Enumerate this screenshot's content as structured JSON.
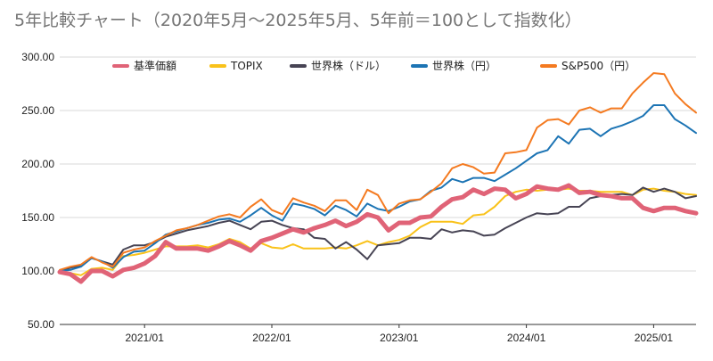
{
  "chart_data": {
    "type": "line",
    "title": "5年比較チャート（2020年5月～2025年5月、5年前＝100として指数化）",
    "xlabel": "",
    "ylabel": "",
    "ylim": [
      50,
      300
    ],
    "yticks": [
      "50.00",
      "100.00",
      "150.00",
      "200.00",
      "250.00",
      "300.00"
    ],
    "xticks": [
      {
        "label": "2021/01",
        "x": 8
      },
      {
        "label": "2022/01",
        "x": 20
      },
      {
        "label": "2023/01",
        "x": 32
      },
      {
        "label": "2024/01",
        "x": 44
      },
      {
        "label": "2025/01",
        "x": 56
      }
    ],
    "grid": true,
    "legend_position": "top",
    "x": [
      0,
      1,
      2,
      3,
      4,
      5,
      6,
      7,
      8,
      9,
      10,
      11,
      12,
      13,
      14,
      15,
      16,
      17,
      18,
      19,
      20,
      21,
      22,
      23,
      24,
      25,
      26,
      27,
      28,
      29,
      30,
      31,
      32,
      33,
      34,
      35,
      36,
      37,
      38,
      39,
      40,
      41,
      42,
      43,
      44,
      45,
      46,
      47,
      48,
      49,
      50,
      51,
      52,
      53,
      54,
      55,
      56,
      57,
      58,
      59,
      60
    ],
    "series": [
      {
        "name": "基準価額",
        "color": "#e06377",
        "width": 5,
        "values": [
          99,
          97,
          90,
          100,
          100,
          95,
          101,
          103,
          107,
          114,
          127,
          121,
          121,
          121,
          119,
          123,
          128,
          124,
          119,
          128,
          131,
          135,
          139,
          136,
          140,
          143,
          147,
          142,
          146,
          153,
          150,
          138,
          145,
          145,
          150,
          151,
          160,
          167,
          169,
          176,
          172,
          177,
          176,
          168,
          172,
          179,
          177,
          176,
          180,
          173,
          174,
          171,
          170,
          168,
          168,
          159,
          156,
          159,
          159,
          156,
          154
        ]
      },
      {
        "name": "TOPIX",
        "color": "#f9c21a",
        "width": 2,
        "values": [
          100,
          98,
          96,
          102,
          103,
          101,
          114,
          115,
          117,
          120,
          123,
          123,
          123,
          124,
          122,
          125,
          130,
          127,
          121,
          126,
          122,
          121,
          125,
          121,
          121,
          121,
          122,
          121,
          124,
          128,
          124,
          127,
          129,
          133,
          141,
          146,
          146,
          146,
          144,
          152,
          153,
          160,
          170,
          174,
          176,
          175,
          176,
          176,
          177,
          175,
          175,
          174,
          174,
          174,
          171,
          176,
          177,
          175,
          174,
          172,
          171
        ]
      },
      {
        "name": "世界株（ドル）",
        "color": "#474454",
        "width": 2,
        "values": [
          100,
          103,
          105,
          112,
          109,
          106,
          120,
          124,
          124,
          127,
          132,
          135,
          138,
          140,
          142,
          145,
          147,
          143,
          139,
          146,
          147,
          143,
          140,
          139,
          131,
          130,
          121,
          127,
          120,
          111,
          124,
          125,
          126,
          131,
          131,
          130,
          139,
          136,
          138,
          137,
          133,
          134,
          140,
          145,
          150,
          154,
          153,
          154,
          160,
          160,
          168,
          170,
          171,
          172,
          171,
          178,
          174,
          177,
          174,
          168,
          170
        ]
      },
      {
        "name": "世界株（円）",
        "color": "#1c74b4",
        "width": 2,
        "values": [
          100,
          101,
          104,
          112,
          109,
          103,
          113,
          118,
          119,
          126,
          134,
          137,
          140,
          143,
          145,
          148,
          149,
          146,
          152,
          159,
          152,
          147,
          163,
          161,
          158,
          152,
          161,
          157,
          151,
          163,
          158,
          156,
          160,
          165,
          167,
          175,
          178,
          186,
          183,
          187,
          187,
          184,
          190,
          196,
          203,
          210,
          213,
          226,
          219,
          232,
          233,
          226,
          233,
          236,
          240,
          245,
          255,
          255,
          242,
          236,
          229
        ]
      },
      {
        "name": "S&P500（円）",
        "color": "#f47a20",
        "width": 2,
        "values": [
          101,
          104,
          106,
          113,
          108,
          104,
          117,
          120,
          122,
          128,
          133,
          138,
          140,
          143,
          147,
          151,
          153,
          150,
          160,
          167,
          157,
          153,
          168,
          164,
          161,
          156,
          166,
          166,
          157,
          176,
          171,
          154,
          163,
          166,
          167,
          174,
          182,
          196,
          200,
          197,
          191,
          192,
          210,
          211,
          213,
          234,
          241,
          242,
          237,
          250,
          253,
          248,
          252,
          252,
          266,
          276,
          285,
          284,
          266,
          256,
          248
        ]
      }
    ]
  }
}
